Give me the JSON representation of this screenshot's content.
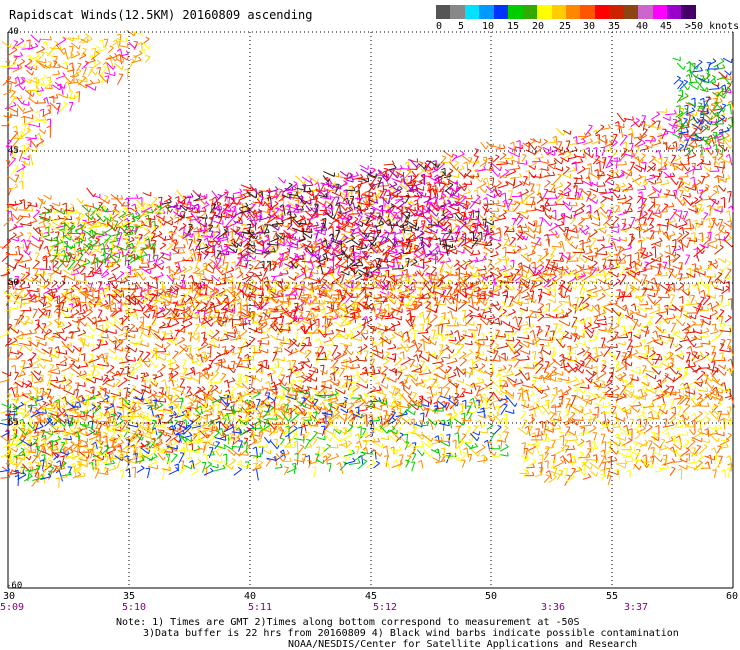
{
  "title": "Rapidscat Winds(12.5KM) 20160809 ascending",
  "legend": {
    "colors": [
      "#555555",
      "#888888",
      "#00e0ff",
      "#0099ff",
      "#0033ff",
      "#00cc00",
      "#33aa00",
      "#ffff00",
      "#ffcc00",
      "#ff8800",
      "#ff5500",
      "#ff0000",
      "#cc2200",
      "#8b4513",
      "#cc66cc",
      "#ff00ff",
      "#9900cc",
      "#440066"
    ],
    "labels": [
      "0",
      "5",
      "10",
      "15",
      "20",
      "25",
      "30",
      "35",
      "40",
      "45",
      ">50 knots"
    ]
  },
  "axes": {
    "x_ticks": [
      "30",
      "35",
      "40",
      "45",
      "50",
      "55",
      "60"
    ],
    "y_ticks": [
      "40",
      "45",
      "50",
      "55",
      "-60"
    ],
    "time_labels": [
      "5:09",
      "5:10",
      "5:11",
      "5:12",
      "3:36",
      "3:37"
    ]
  },
  "notes": [
    "Note: 1) Times are GMT 2)Times along bottom correspond to measurement at -50S",
    "3)Data buffer is 22 hrs from 20160809 4) Black wind barbs indicate possible contamination",
    "NOAA/NESDIS/Center for Satellite Applications and Research"
  ]
}
